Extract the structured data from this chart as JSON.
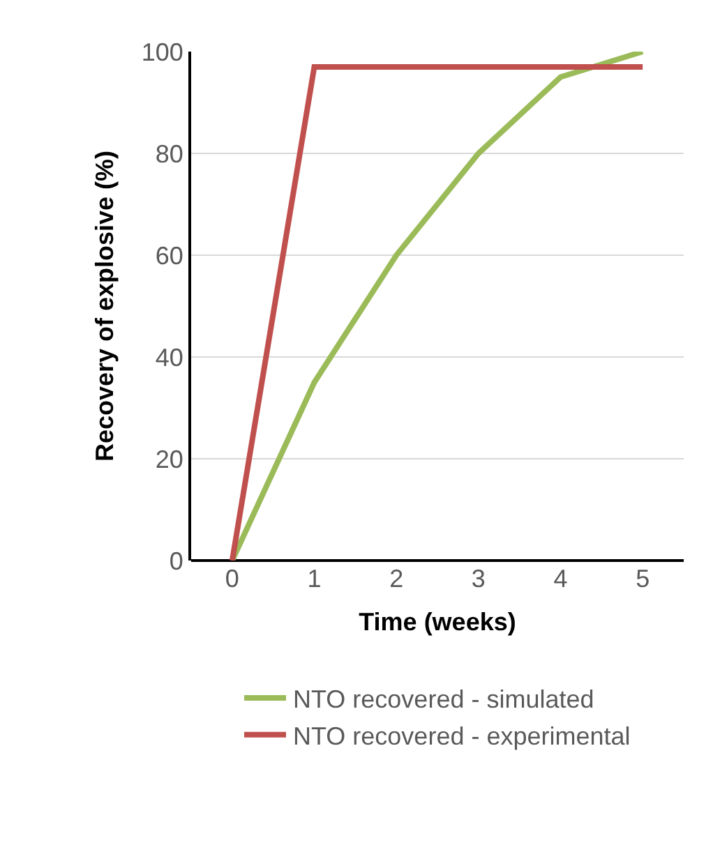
{
  "chart_data": {
    "type": "line",
    "xlabel": "Time (weeks)",
    "ylabel": "Recovery of explosive (%)",
    "x": [
      0,
      1,
      2,
      3,
      4,
      5
    ],
    "series": [
      {
        "name": "NTO recovered - simulated",
        "color": "#9bbb59",
        "values": [
          0,
          35,
          60,
          80,
          95,
          100
        ]
      },
      {
        "name": "NTO recovered - experimental",
        "color": "#c0504d",
        "values": [
          0,
          97,
          97,
          97,
          97,
          97
        ]
      }
    ],
    "xlim": [
      -0.5,
      5.5
    ],
    "ylim": [
      0,
      100
    ],
    "xticks": [
      0,
      1,
      2,
      3,
      4,
      5
    ],
    "yticks": [
      0,
      20,
      40,
      60,
      80,
      100
    ],
    "grid": "y",
    "legend": "bottom",
    "marker": "none",
    "line_style": "solid"
  }
}
